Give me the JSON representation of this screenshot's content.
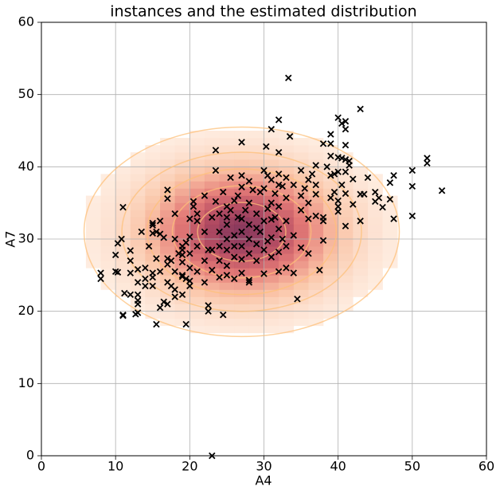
{
  "chart_data": {
    "type": "scatter",
    "title": "instances and the estimated distribution",
    "x_label": "A4",
    "y_label": "A7",
    "xlim": [
      0,
      60
    ],
    "ylim": [
      0,
      60
    ],
    "xticks": [
      0,
      10,
      20,
      30,
      40,
      50,
      60
    ],
    "yticks": [
      0,
      10,
      20,
      30,
      40,
      50,
      60
    ],
    "grid": true,
    "color": "#000000",
    "marker": "x",
    "distribution": {
      "mean": [
        27,
        31
      ],
      "std": [
        8.5,
        5.8
      ],
      "contour_levels": [
        0.7,
        1.1,
        1.5,
        1.9,
        2.5
      ]
    },
    "x": [
      8,
      8,
      10,
      10,
      10.3,
      10.3,
      10.8,
      11,
      11,
      11,
      11.2,
      12,
      12,
      12,
      12,
      12.7,
      13,
      13,
      13,
      13,
      13,
      13.5,
      13,
      14,
      14,
      14,
      14.5,
      15,
      15,
      15,
      15,
      15,
      15,
      15.5,
      15.5,
      15.5,
      16,
      16,
      16,
      16,
      16.5,
      16.5,
      17,
      17,
      17,
      17,
      17,
      17,
      17.5,
      17.5,
      18,
      18,
      18,
      18,
      18,
      18.5,
      19,
      19,
      19,
      19,
      19,
      19,
      19,
      19.5,
      19.5,
      19.5,
      20,
      20,
      20,
      20,
      20,
      20,
      20.5,
      20.5,
      21,
      21,
      21,
      21,
      22,
      22,
      22,
      22,
      22.5,
      22.5,
      22.5,
      23,
      23,
      23,
      23,
      23.5,
      23.5,
      23.5,
      24,
      24,
      24,
      24,
      24,
      24.5,
      24.5,
      25,
      25,
      25,
      25,
      25,
      25,
      25,
      25.5,
      25.5,
      26,
      26,
      26,
      26,
      26,
      26.5,
      26.5,
      27,
      27,
      27,
      27,
      27,
      27,
      27,
      27,
      27.5,
      28,
      28,
      28,
      28,
      28,
      28,
      28,
      28.5,
      29,
      29,
      29,
      29,
      29.5,
      29.5,
      30,
      30,
      30,
      30,
      30,
      30.3,
      30.5,
      30.5,
      30.5,
      31,
      31,
      31,
      31,
      31,
      31,
      31.5,
      31.5,
      32,
      32,
      32,
      32,
      32,
      32,
      32,
      32,
      32.5,
      32.5,
      33,
      33,
      33,
      33,
      33,
      33.3,
      33.5,
      34,
      34,
      34,
      34.5,
      35,
      35,
      35,
      35,
      35.5,
      36,
      36,
      36,
      36,
      36.5,
      37,
      37,
      37,
      37,
      37.5,
      38,
      38,
      38,
      38,
      38.5,
      39,
      39,
      39,
      39,
      39,
      39.5,
      39.5,
      40,
      40,
      40,
      40,
      40,
      40,
      40.5,
      40.5,
      40.5,
      41,
      41,
      41,
      41,
      41,
      41,
      41,
      41.5,
      41.5,
      42,
      42,
      43,
      43,
      43,
      43.5,
      44,
      45,
      45,
      45.5,
      46,
      47,
      47,
      47.5,
      47.5,
      50,
      50,
      50,
      52,
      52,
      54
    ],
    "values": [
      25.3,
      24.5,
      27.8,
      25.5,
      25.4,
      29.4,
      30,
      34.4,
      19.4,
      19.5,
      22.5,
      22.3,
      27,
      28.4,
      25.3,
      19.6,
      19.8,
      22.3,
      21.5,
      24,
      25.8,
      31,
      21,
      24.5,
      26,
      23.5,
      29,
      32.2,
      31.9,
      30.8,
      25.3,
      23.5,
      24.7,
      27.3,
      18.2,
      31,
      32.5,
      30.7,
      20.5,
      25.5,
      21.3,
      30.2,
      36.8,
      35.6,
      27.3,
      26.5,
      24,
      21,
      23.5,
      27,
      33.5,
      30,
      25.5,
      23,
      22,
      28,
      29,
      28.5,
      27.8,
      26.8,
      24.8,
      22.3,
      25,
      18.2,
      29.5,
      24.5,
      32.8,
      30.3,
      28,
      26,
      24.2,
      23.5,
      34.5,
      35.2,
      33.5,
      32.5,
      25.5,
      29,
      31,
      27,
      24,
      36,
      28.5,
      20,
      20.8,
      33,
      28.5,
      25.7,
      0,
      42.3,
      39.5,
      35.2,
      33.5,
      31,
      29,
      27,
      24.7,
      36.5,
      19.5,
      34.5,
      33,
      32,
      30,
      28.5,
      26.3,
      25,
      38.5,
      34,
      35.3,
      30.5,
      29,
      27.5,
      24.5,
      33,
      36,
      43.4,
      38.8,
      37.2,
      32.8,
      31,
      29,
      27.2,
      25.3,
      34,
      38,
      35,
      32,
      30,
      28,
      24.3,
      24,
      36.8,
      33.5,
      31.5,
      29.3,
      27,
      36.5,
      31,
      39.5,
      37,
      32.5,
      28.5,
      25.2,
      42.8,
      38.8,
      34.2,
      29.7,
      45.2,
      38.2,
      35,
      32.7,
      30.2,
      27.5,
      36.3,
      33,
      42,
      39,
      37.5,
      34.5,
      31.4,
      28.2,
      25.5,
      46.5,
      37.3,
      30,
      38.5,
      35.7,
      32.5,
      29,
      26,
      52.3,
      44.2,
      37.5,
      30.5,
      25.3,
      21.7,
      39.5,
      36,
      34,
      28.8,
      37,
      38.2,
      35,
      32.8,
      28,
      39,
      40.2,
      37.5,
      36.2,
      33.2,
      25.7,
      43.2,
      33,
      29.8,
      32.5,
      40,
      44.5,
      43.2,
      41.5,
      38.8,
      35.7,
      36.5,
      39,
      46.8,
      41.3,
      39.3,
      35.3,
      34.5,
      33.8,
      46,
      41.2,
      37.5,
      46.3,
      45.2,
      43,
      41,
      39.3,
      36.3,
      31.8,
      40.8,
      40.2,
      38.3,
      34.8,
      48,
      36.2,
      32.5,
      36.2,
      38.5,
      36.5,
      35.2,
      35.7,
      34.4,
      37.8,
      35.5,
      38.8,
      32.8,
      39.5,
      37.3,
      33.2,
      41.2,
      40.5,
      36.7
    ]
  }
}
